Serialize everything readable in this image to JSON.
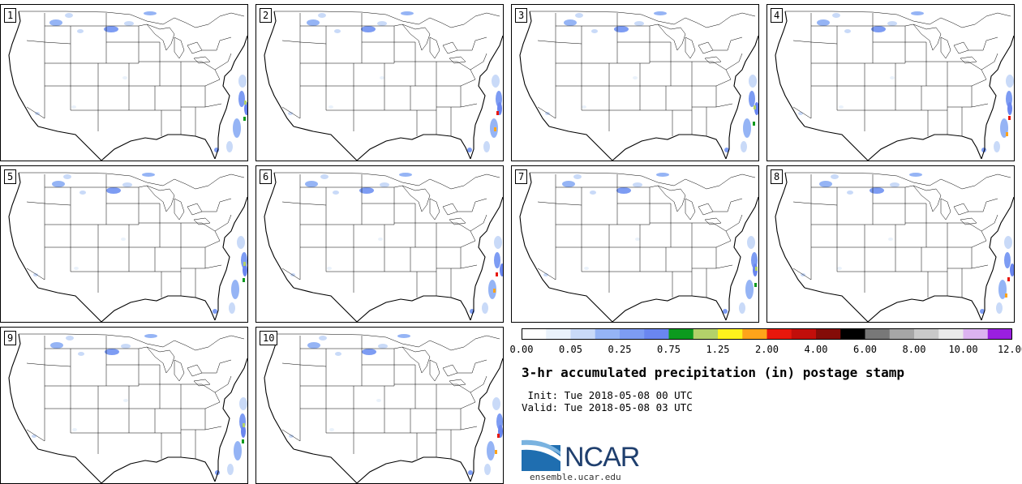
{
  "panels": [
    {
      "label": "1"
    },
    {
      "label": "2"
    },
    {
      "label": "3"
    },
    {
      "label": "4"
    },
    {
      "label": "5"
    },
    {
      "label": "6"
    },
    {
      "label": "7"
    },
    {
      "label": "8"
    },
    {
      "label": "9"
    },
    {
      "label": "10"
    }
  ],
  "colorbar": {
    "colors": [
      "#ffffff",
      "#eaf2fb",
      "#c9daf8",
      "#95b4f5",
      "#7d9cf3",
      "#6a86f0",
      "#0c9a1e",
      "#b3d16a",
      "#fff21c",
      "#ffa41a",
      "#e8170c",
      "#c20e0a",
      "#840c08",
      "#000000",
      "#787878",
      "#a6a6a6",
      "#c9c9c9",
      "#eaeaea",
      "#dcb3f0",
      "#9a1fe0"
    ],
    "ticks": [
      "0.00",
      "0.05",
      "0.25",
      "0.75",
      "1.25",
      "2.00",
      "4.00",
      "6.00",
      "8.00",
      "10.00",
      "12.00"
    ]
  },
  "title": "3-hr accumulated precipitation (in) postage stamp",
  "init_line": " Init: Tue 2018-05-08 00 UTC",
  "valid_line": "Valid: Tue 2018-05-08 03 UTC",
  "logo": {
    "name": "NCAR",
    "url": "ensemble.ucar.edu",
    "color": "#1f3f6e"
  }
}
